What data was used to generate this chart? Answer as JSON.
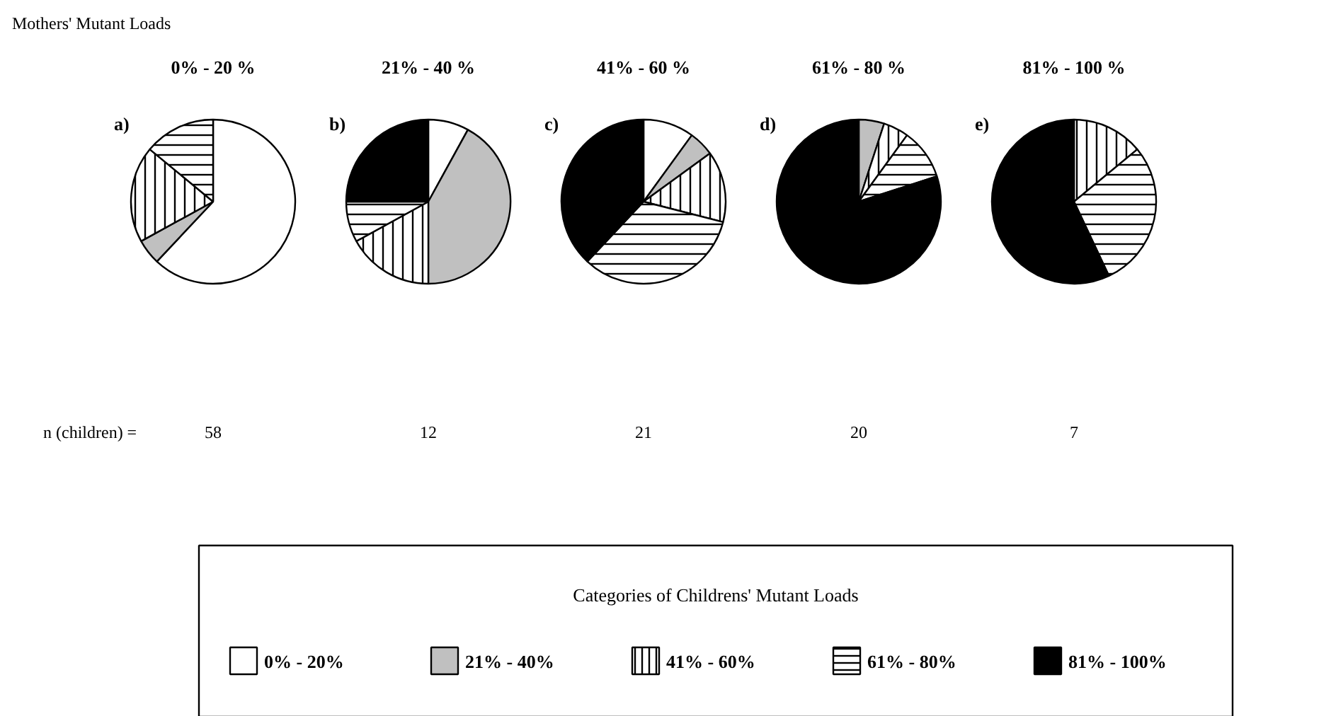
{
  "chart_data": {
    "type": "pie",
    "title": "Mothers' Mutant Loads",
    "legend": "bottom",
    "legend_title": "Categories of Childrens' Mutant Loads",
    "categories": [
      "0% - 20%",
      "21% - 40%",
      "41% - 60%",
      "61% - 80%",
      "81% - 100%"
    ],
    "colors": [
      "#ffffff",
      "#c0c0c0",
      "#ffffff",
      "#ffffff",
      "#000000"
    ],
    "series": [
      {
        "name": "0% - 20 %",
        "values": [
          62,
          5,
          19,
          14,
          0
        ]
      },
      {
        "name": "21% - 40 %",
        "values": [
          8,
          42,
          17,
          8,
          25
        ]
      },
      {
        "name": "41% - 60 %",
        "values": [
          10,
          5,
          14,
          33,
          38
        ]
      },
      {
        "name": "61% - 80 %",
        "values": [
          0,
          5,
          5,
          10,
          80
        ]
      },
      {
        "name": "81% - 100 %",
        "values": [
          0,
          0,
          14,
          29,
          57
        ]
      }
    ],
    "annotations": [
      "a)",
      "b)",
      "c)",
      "d)",
      "e)",
      "n (children) =",
      "58",
      "12",
      "21",
      "20",
      "7"
    ]
  }
}
